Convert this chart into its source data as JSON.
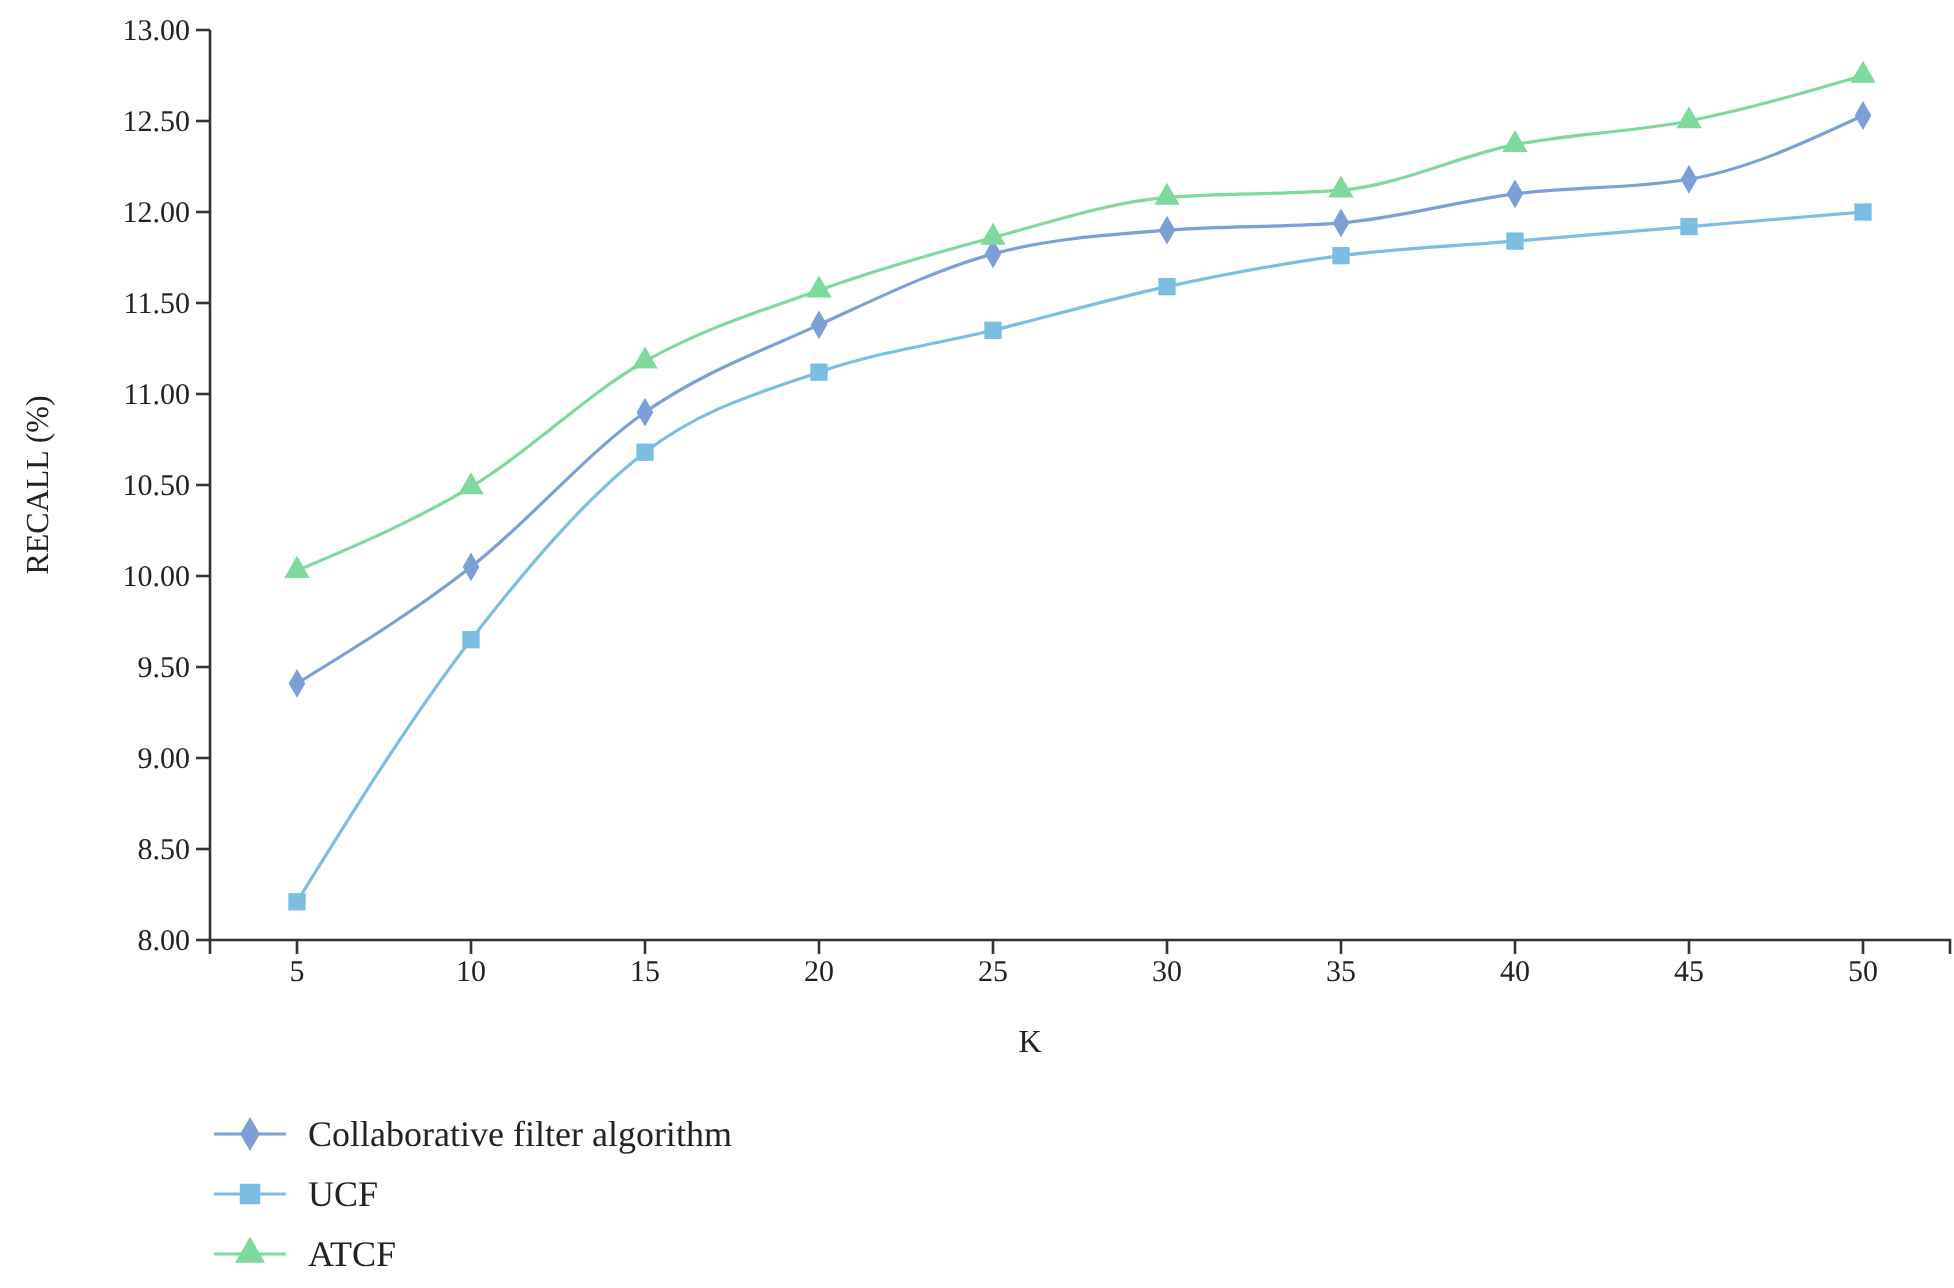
{
  "chart_data": {
    "type": "line",
    "xlabel": "K",
    "ylabel": "RECALL (%)",
    "categories": [
      "5",
      "10",
      "15",
      "20",
      "25",
      "30",
      "35",
      "40",
      "45",
      "50"
    ],
    "series": [
      {
        "name": "Collaborative filter algorithm",
        "color": "#7b9fd6",
        "marker": "diamond",
        "values": [
          9.41,
          10.05,
          10.9,
          11.38,
          11.77,
          11.9,
          11.94,
          12.1,
          12.18,
          12.53
        ]
      },
      {
        "name": "UCF",
        "color": "#7bbde3",
        "marker": "square",
        "values": [
          8.21,
          9.65,
          10.68,
          11.12,
          11.35,
          11.59,
          11.76,
          11.84,
          11.92,
          12.0
        ]
      },
      {
        "name": "ATCF",
        "color": "#7dd99e",
        "marker": "triangle",
        "values": [
          10.03,
          10.49,
          11.18,
          11.57,
          11.86,
          12.08,
          12.12,
          12.37,
          12.5,
          12.75
        ]
      }
    ],
    "ylim": [
      8,
      13
    ],
    "yticks": [
      {
        "value": 8,
        "label": "8.00"
      },
      {
        "value": 8.5,
        "label": "8.50"
      },
      {
        "value": 9,
        "label": "9.00"
      },
      {
        "value": 9.5,
        "label": "9.50"
      },
      {
        "value": 10,
        "label": "10.00"
      },
      {
        "value": 10.5,
        "label": "10.50"
      },
      {
        "value": 11,
        "label": "11.00"
      },
      {
        "value": 11.5,
        "label": "11.50"
      },
      {
        "value": 12,
        "label": "12.00"
      },
      {
        "value": 12.5,
        "label": "12.50"
      },
      {
        "value": 13,
        "label": "13.00"
      }
    ],
    "grid": false,
    "legend": "bottom left",
    "line_style": "solid"
  }
}
